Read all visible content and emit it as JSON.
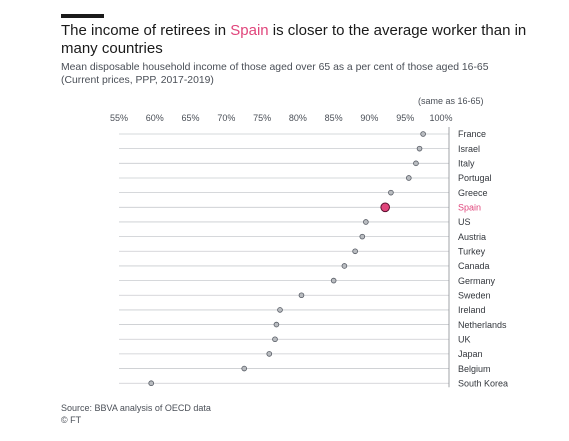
{
  "header": {
    "title_before": "The income of retirees in ",
    "title_highlight": "Spain",
    "title_after": " is closer to the average worker than in many countries",
    "subtitle_line1": "Mean disposable household income of those aged over 65 as a per cent of those aged 16-65",
    "subtitle_line2": "(Current prices, PPP, 2017-2019)"
  },
  "chart_data": {
    "type": "scatter",
    "xlim": [
      55,
      100
    ],
    "ticks": [
      "55%",
      "60%",
      "65%",
      "70%",
      "75%",
      "80%",
      "85%",
      "90%",
      "95%",
      "100%"
    ],
    "tick_values": [
      55,
      60,
      65,
      70,
      75,
      80,
      85,
      90,
      95,
      100
    ],
    "unit_note": "(same as 16-65)",
    "highlight": "Spain",
    "colors": {
      "point": "#b9bcc0",
      "point_stroke": "#555a63",
      "highlight": "#e0457b",
      "highlight_stroke": "#5a1030",
      "grid": "#c9cbcf"
    },
    "categories": [
      "France",
      "Israel",
      "Italy",
      "Portugal",
      "Greece",
      "Spain",
      "US",
      "Austria",
      "Turkey",
      "Canada",
      "Germany",
      "Sweden",
      "Ireland",
      "Netherlands",
      "UK",
      "Japan",
      "Belgium",
      "South Korea"
    ],
    "values": [
      97.5,
      97.0,
      96.5,
      95.5,
      93.0,
      92.2,
      89.5,
      89.0,
      88.0,
      86.5,
      85.0,
      80.5,
      77.5,
      77.0,
      76.8,
      76.0,
      72.5,
      59.5
    ]
  },
  "footer": {
    "source": "Source: BBVA analysis of OECD data",
    "credit": "© FT"
  }
}
